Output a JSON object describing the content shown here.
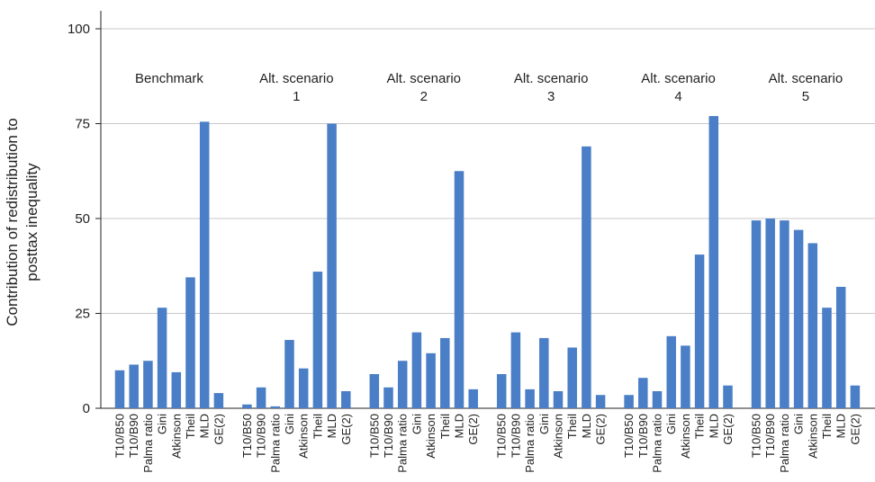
{
  "chart_data": {
    "type": "bar",
    "title": "",
    "ylabel": "Contribution of redistribution to posttax inequality",
    "ylabel_lines": [
      "Contribution of redistribution to",
      "posttax inequality"
    ],
    "xlabel": "",
    "ylim": [
      0,
      100
    ],
    "yticks": [
      0,
      25,
      50,
      75,
      100
    ],
    "grid": true,
    "bar_color": "#4a7ec6",
    "categories": [
      "T10/B50",
      "T10/B90",
      "Palma ratio",
      "Gini",
      "Atkinson",
      "Theil",
      "MLD",
      "GE(2)"
    ],
    "groups": [
      {
        "name": "Benchmark",
        "label_lines": [
          "Benchmark"
        ],
        "values": [
          10,
          11.5,
          12.5,
          26.5,
          9.5,
          34.5,
          75.5,
          4
        ]
      },
      {
        "name": "Alt. scenario 1",
        "label_lines": [
          "Alt. scenario",
          "1"
        ],
        "values": [
          1,
          5.5,
          0.5,
          18,
          10.5,
          36,
          75,
          4.5
        ]
      },
      {
        "name": "Alt. scenario 2",
        "label_lines": [
          "Alt. scenario",
          "2"
        ],
        "values": [
          9,
          5.5,
          12.5,
          20,
          14.5,
          18.5,
          62.5,
          5
        ]
      },
      {
        "name": "Alt. scenario 3",
        "label_lines": [
          "Alt. scenario",
          "3"
        ],
        "values": [
          9,
          20,
          5,
          18.5,
          4.5,
          16,
          69,
          3.5
        ]
      },
      {
        "name": "Alt. scenario 4",
        "label_lines": [
          "Alt. scenario",
          "4"
        ],
        "values": [
          3.5,
          8,
          4.5,
          19,
          16.5,
          40.5,
          77,
          6
        ]
      },
      {
        "name": "Alt. scenario 5",
        "label_lines": [
          "Alt. scenario",
          "5"
        ],
        "values": [
          49.5,
          50,
          49.5,
          47,
          43.5,
          26.5,
          32,
          6
        ]
      }
    ]
  }
}
